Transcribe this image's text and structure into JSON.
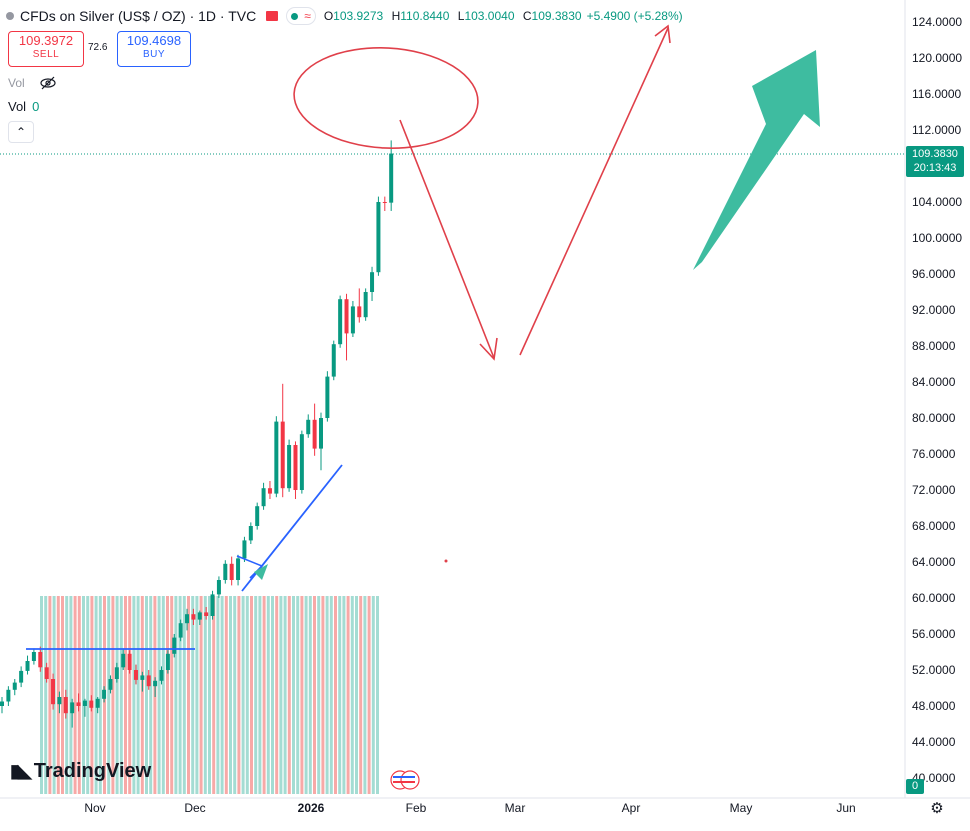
{
  "header": {
    "title": "CFDs on Silver (US$ / OZ) · 1D · TVC",
    "ohlc": [
      {
        "k": "O",
        "v": "103.9273"
      },
      {
        "k": "H",
        "v": "110.8440"
      },
      {
        "k": "L",
        "v": "103.0040"
      },
      {
        "k": "C",
        "v": "109.3830"
      }
    ],
    "change": "+5.4900 (+5.28%)",
    "colors": {
      "up": "#089981",
      "down": "#f23645",
      "accent": "#2962ff"
    }
  },
  "trade": {
    "sell_price": "109.3972",
    "sell_label": "SELL",
    "spread": "72.6",
    "buy_price": "109.4698",
    "buy_label": "BUY"
  },
  "indicators": {
    "vol_hidden_label": "Vol",
    "vol_label": "Vol",
    "vol_value": "0"
  },
  "price_axis": {
    "labels": [
      "124.0000",
      "120.0000",
      "116.0000",
      "112.0000",
      "108.0000",
      "104.0000",
      "100.0000",
      "96.0000",
      "92.0000",
      "88.0000",
      "84.0000",
      "80.0000",
      "76.0000",
      "72.0000",
      "68.0000",
      "64.0000",
      "60.0000",
      "56.0000",
      "52.0000",
      "48.0000",
      "44.0000",
      "40.0000"
    ],
    "last_price": "109.3830",
    "countdown": "20:13:43",
    "volume_last": "0"
  },
  "time_axis": {
    "labels": [
      "Nov",
      "Dec",
      "2026",
      "Feb",
      "Mar",
      "Apr",
      "May",
      "Jun"
    ]
  },
  "brand": {
    "name": "TradingView"
  },
  "icons": [
    "eye-crossed-icon",
    "chevron-up-icon",
    "gear-icon",
    "tradingview-logo-icon",
    "calendar-event-icon"
  ],
  "chart_data": {
    "type": "candlestick",
    "symbol": "CFDs on Silver (US$ / OZ)",
    "interval": "1D",
    "ylim": [
      40,
      126
    ],
    "candles": [
      {
        "o": 48.0,
        "h": 49.0,
        "l": 47.2,
        "c": 48.5
      },
      {
        "o": 48.5,
        "h": 50.2,
        "l": 48.0,
        "c": 49.8
      },
      {
        "o": 49.8,
        "h": 51.0,
        "l": 49.2,
        "c": 50.6
      },
      {
        "o": 50.6,
        "h": 52.4,
        "l": 50.1,
        "c": 51.9
      },
      {
        "o": 51.9,
        "h": 53.6,
        "l": 51.5,
        "c": 53.0
      },
      {
        "o": 53.0,
        "h": 54.4,
        "l": 52.6,
        "c": 54.0
      },
      {
        "o": 54.0,
        "h": 54.6,
        "l": 51.8,
        "c": 52.3
      },
      {
        "o": 52.3,
        "h": 52.8,
        "l": 50.6,
        "c": 51.0
      },
      {
        "o": 51.0,
        "h": 51.6,
        "l": 47.6,
        "c": 48.2
      },
      {
        "o": 48.2,
        "h": 49.6,
        "l": 47.2,
        "c": 49.0
      },
      {
        "o": 49.0,
        "h": 49.8,
        "l": 46.6,
        "c": 47.2
      },
      {
        "o": 47.2,
        "h": 48.8,
        "l": 45.6,
        "c": 48.4
      },
      {
        "o": 48.4,
        "h": 49.4,
        "l": 47.4,
        "c": 48.0
      },
      {
        "o": 48.0,
        "h": 48.8,
        "l": 46.8,
        "c": 48.6
      },
      {
        "o": 48.6,
        "h": 49.2,
        "l": 47.4,
        "c": 47.8
      },
      {
        "o": 47.8,
        "h": 49.0,
        "l": 47.2,
        "c": 48.8
      },
      {
        "o": 48.8,
        "h": 50.2,
        "l": 48.4,
        "c": 49.8
      },
      {
        "o": 49.8,
        "h": 51.4,
        "l": 49.4,
        "c": 51.0
      },
      {
        "o": 51.0,
        "h": 52.8,
        "l": 50.6,
        "c": 52.3
      },
      {
        "o": 52.3,
        "h": 54.4,
        "l": 52.0,
        "c": 53.8
      },
      {
        "o": 53.8,
        "h": 54.2,
        "l": 51.6,
        "c": 52.0
      },
      {
        "o": 52.0,
        "h": 52.6,
        "l": 50.4,
        "c": 50.9
      },
      {
        "o": 50.9,
        "h": 51.8,
        "l": 49.6,
        "c": 51.4
      },
      {
        "o": 51.4,
        "h": 52.0,
        "l": 49.8,
        "c": 50.2
      },
      {
        "o": 50.2,
        "h": 51.2,
        "l": 49.0,
        "c": 50.8
      },
      {
        "o": 50.8,
        "h": 52.4,
        "l": 50.4,
        "c": 52.0
      },
      {
        "o": 52.0,
        "h": 54.2,
        "l": 51.6,
        "c": 53.8
      },
      {
        "o": 53.8,
        "h": 56.0,
        "l": 53.4,
        "c": 55.6
      },
      {
        "o": 55.6,
        "h": 57.6,
        "l": 55.2,
        "c": 57.2
      },
      {
        "o": 57.2,
        "h": 58.8,
        "l": 56.4,
        "c": 58.2
      },
      {
        "o": 58.2,
        "h": 58.8,
        "l": 57.0,
        "c": 57.6
      },
      {
        "o": 57.6,
        "h": 58.6,
        "l": 57.0,
        "c": 58.4
      },
      {
        "o": 58.4,
        "h": 59.0,
        "l": 57.6,
        "c": 58.0
      },
      {
        "o": 58.0,
        "h": 60.8,
        "l": 57.6,
        "c": 60.4
      },
      {
        "o": 60.4,
        "h": 62.4,
        "l": 60.0,
        "c": 62.0
      },
      {
        "o": 62.0,
        "h": 64.2,
        "l": 61.6,
        "c": 63.8
      },
      {
        "o": 63.8,
        "h": 64.6,
        "l": 61.4,
        "c": 62.0
      },
      {
        "o": 62.0,
        "h": 64.8,
        "l": 61.4,
        "c": 64.4
      },
      {
        "o": 64.4,
        "h": 66.8,
        "l": 64.0,
        "c": 66.4
      },
      {
        "o": 66.4,
        "h": 68.4,
        "l": 66.0,
        "c": 68.0
      },
      {
        "o": 68.0,
        "h": 70.6,
        "l": 67.6,
        "c": 70.2
      },
      {
        "o": 70.2,
        "h": 72.8,
        "l": 69.8,
        "c": 72.2
      },
      {
        "o": 72.2,
        "h": 73.0,
        "l": 71.0,
        "c": 71.6
      },
      {
        "o": 71.6,
        "h": 80.2,
        "l": 71.2,
        "c": 79.6
      },
      {
        "o": 79.6,
        "h": 83.8,
        "l": 71.2,
        "c": 72.2
      },
      {
        "o": 72.2,
        "h": 77.6,
        "l": 71.8,
        "c": 77.0
      },
      {
        "o": 77.0,
        "h": 77.4,
        "l": 71.0,
        "c": 72.0
      },
      {
        "o": 72.0,
        "h": 78.6,
        "l": 71.6,
        "c": 78.2
      },
      {
        "o": 78.2,
        "h": 80.4,
        "l": 77.8,
        "c": 79.8
      },
      {
        "o": 79.8,
        "h": 81.6,
        "l": 75.8,
        "c": 76.6
      },
      {
        "o": 76.6,
        "h": 80.6,
        "l": 74.2,
        "c": 80.0
      },
      {
        "o": 80.0,
        "h": 85.2,
        "l": 79.6,
        "c": 84.6
      },
      {
        "o": 84.6,
        "h": 88.6,
        "l": 84.2,
        "c": 88.2
      },
      {
        "o": 88.2,
        "h": 93.6,
        "l": 87.8,
        "c": 93.2
      },
      {
        "o": 93.2,
        "h": 93.8,
        "l": 86.4,
        "c": 89.4
      },
      {
        "o": 89.4,
        "h": 93.0,
        "l": 89.0,
        "c": 92.4
      },
      {
        "o": 92.4,
        "h": 94.4,
        "l": 90.6,
        "c": 91.2
      },
      {
        "o": 91.2,
        "h": 94.4,
        "l": 90.8,
        "c": 94.0
      },
      {
        "o": 94.0,
        "h": 96.8,
        "l": 93.0,
        "c": 96.2
      },
      {
        "o": 96.2,
        "h": 104.6,
        "l": 95.8,
        "c": 104.0
      },
      {
        "o": 104.0,
        "h": 104.6,
        "l": 103.0,
        "c": 103.9
      },
      {
        "o": 103.9273,
        "h": 110.844,
        "l": 103.004,
        "c": 109.383
      }
    ],
    "volume_note": "volume histogram (no values printed)"
  }
}
